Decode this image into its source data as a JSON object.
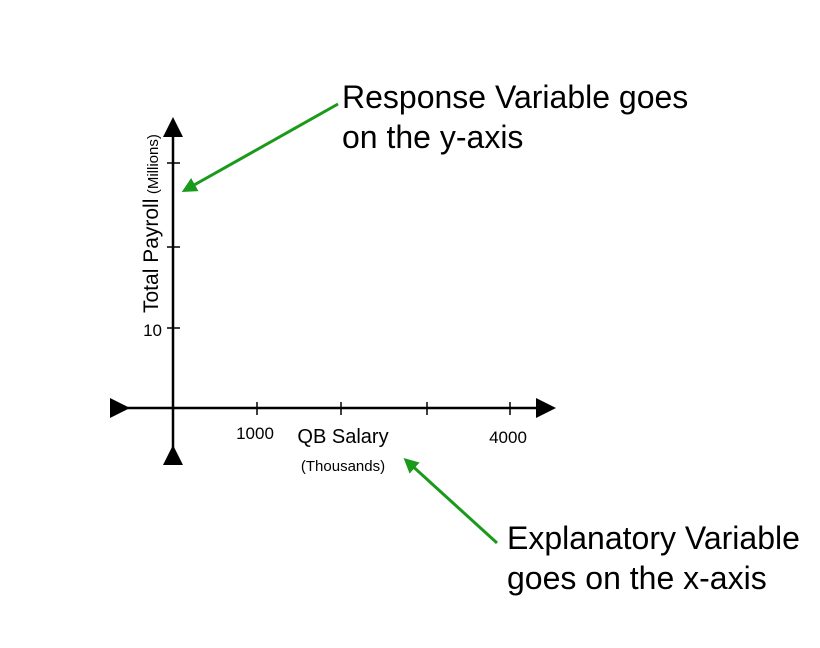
{
  "y_axis": {
    "label": "Total Payroll",
    "unit": "(Millions)",
    "tick_labels": [
      "10"
    ]
  },
  "x_axis": {
    "label": "QB Salary",
    "unit": "(Thousands)",
    "tick_labels": [
      "1000",
      "4000"
    ]
  },
  "annotations": [
    {
      "lines": [
        "Response Variable goes",
        "on the y-axis"
      ]
    },
    {
      "lines": [
        "Explanatory Variable",
        "goes on the x-axis"
      ]
    }
  ]
}
